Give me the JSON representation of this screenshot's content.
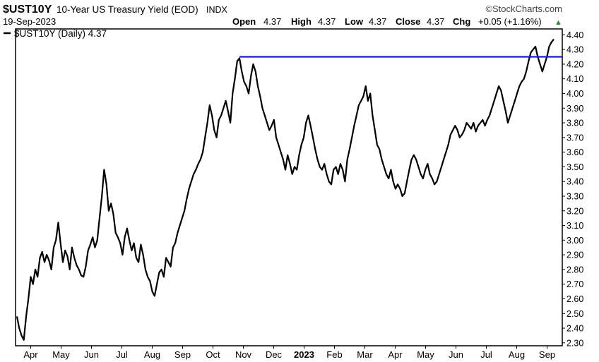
{
  "header": {
    "symbol": "$UST10Y",
    "description": "10-Year US Treasury Yield (EOD)",
    "exchange": "INDX",
    "date": "19-Sep-2023",
    "watermark": "©StockCharts.com",
    "open_label": "Open",
    "open_value": "4.37",
    "high_label": "High",
    "high_value": "4.37",
    "low_label": "Low",
    "low_value": "4.37",
    "close_label": "Close",
    "close_value": "4.37",
    "chg_label": "Chg",
    "chg_value": "+0.05 (+1.16%)",
    "chg_arrow": "▲",
    "up_color": "#2e8b2e"
  },
  "legend": {
    "label": "$UST10Y (Daily) 4.37"
  },
  "chart_data": {
    "type": "line",
    "title": "$UST10Y 10-Year US Treasury Yield (EOD) INDX",
    "x_labels": [
      "Apr",
      "May",
      "Jun",
      "Jul",
      "Aug",
      "Sep",
      "Oct",
      "Nov",
      "Dec",
      "2023",
      "Feb",
      "Mar",
      "Apr",
      "May",
      "Jun",
      "Jul",
      "Aug",
      "Sep"
    ],
    "y_ticks": [
      "2.30",
      "2.40",
      "2.50",
      "2.60",
      "2.70",
      "2.80",
      "2.90",
      "3.00",
      "3.10",
      "3.20",
      "3.30",
      "3.40",
      "3.50",
      "3.60",
      "3.70",
      "3.80",
      "3.90",
      "4.00",
      "4.10",
      "4.20",
      "4.30",
      "4.40"
    ],
    "ylim": [
      2.28,
      4.44
    ],
    "y_axis_side": "right",
    "grid": false,
    "line_color": "#000000",
    "resistance_color": "#1a1adb",
    "series": [
      {
        "name": "$UST10Y (Daily)",
        "values": [
          2.48,
          2.4,
          2.35,
          2.32,
          2.48,
          2.6,
          2.75,
          2.7,
          2.8,
          2.75,
          2.88,
          2.92,
          2.85,
          2.9,
          2.86,
          2.8,
          2.95,
          3.0,
          3.12,
          2.98,
          2.85,
          2.93,
          2.89,
          2.8,
          2.95,
          2.88,
          2.83,
          2.8,
          2.76,
          2.75,
          2.82,
          2.93,
          2.97,
          3.02,
          2.95,
          3.0,
          3.15,
          3.3,
          3.48,
          3.38,
          3.2,
          3.25,
          3.18,
          3.05,
          3.02,
          2.98,
          2.9,
          3.02,
          3.08,
          3.0,
          2.93,
          2.98,
          2.88,
          2.85,
          2.97,
          2.9,
          2.8,
          2.75,
          2.72,
          2.65,
          2.62,
          2.7,
          2.78,
          2.8,
          2.75,
          2.88,
          2.85,
          2.82,
          2.95,
          2.98,
          3.05,
          3.1,
          3.15,
          3.2,
          3.28,
          3.35,
          3.4,
          3.45,
          3.48,
          3.52,
          3.55,
          3.6,
          3.7,
          3.8,
          3.92,
          3.85,
          3.75,
          3.7,
          3.82,
          3.85,
          3.9,
          3.95,
          3.88,
          3.8,
          4.0,
          4.1,
          4.22,
          4.24,
          4.15,
          4.08,
          4.05,
          4.0,
          4.12,
          4.2,
          4.15,
          4.05,
          3.98,
          3.9,
          3.85,
          3.8,
          3.75,
          3.78,
          3.82,
          3.7,
          3.65,
          3.6,
          3.55,
          3.48,
          3.58,
          3.52,
          3.45,
          3.5,
          3.48,
          3.58,
          3.65,
          3.7,
          3.8,
          3.85,
          3.78,
          3.7,
          3.62,
          3.55,
          3.5,
          3.48,
          3.52,
          3.45,
          3.4,
          3.38,
          3.48,
          3.5,
          3.45,
          3.52,
          3.48,
          3.4,
          3.55,
          3.62,
          3.7,
          3.78,
          3.85,
          3.92,
          3.95,
          3.98,
          4.05,
          3.95,
          4.0,
          3.85,
          3.75,
          3.65,
          3.62,
          3.55,
          3.5,
          3.45,
          3.42,
          3.48,
          3.4,
          3.35,
          3.38,
          3.35,
          3.3,
          3.32,
          3.4,
          3.48,
          3.55,
          3.58,
          3.55,
          3.5,
          3.45,
          3.42,
          3.48,
          3.52,
          3.45,
          3.42,
          3.38,
          3.4,
          3.45,
          3.5,
          3.55,
          3.6,
          3.65,
          3.72,
          3.75,
          3.78,
          3.75,
          3.7,
          3.72,
          3.75,
          3.8,
          3.78,
          3.76,
          3.8,
          3.74,
          3.78,
          3.8,
          3.82,
          3.78,
          3.82,
          3.85,
          3.9,
          3.95,
          4.0,
          4.05,
          4.02,
          3.95,
          3.88,
          3.8,
          3.85,
          3.9,
          3.95,
          4.0,
          4.05,
          4.08,
          4.1,
          4.15,
          4.22,
          4.28,
          4.3,
          4.32,
          4.25,
          4.2,
          4.15,
          4.2,
          4.25,
          4.32,
          4.35,
          4.37
        ]
      }
    ],
    "resistance_level": 4.25
  }
}
